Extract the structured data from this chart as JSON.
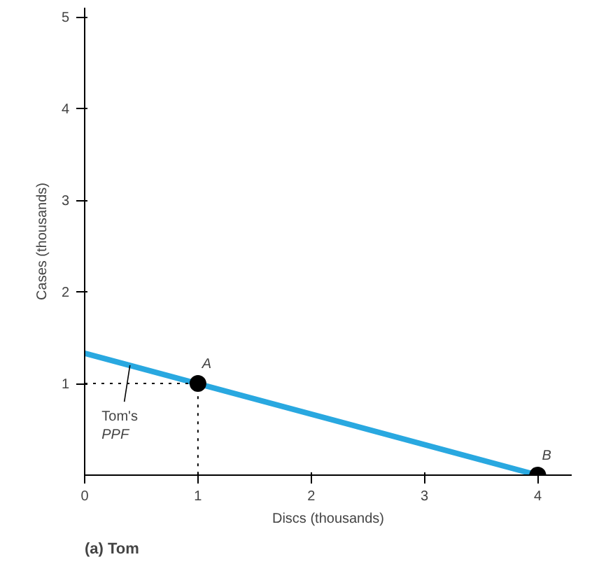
{
  "chart_data": {
    "type": "line",
    "title": "(a) Tom",
    "xlabel": "Discs (thousands)",
    "ylabel": "Cases (thousands)",
    "xlim": [
      0,
      4.3
    ],
    "ylim": [
      0,
      5.1
    ],
    "xticks": [
      0,
      1,
      2,
      3,
      4
    ],
    "yticks": [
      1,
      2,
      3,
      4,
      5
    ],
    "grid": false,
    "series": [
      {
        "color": "#29a8e0",
        "x": [
          0,
          4
        ],
        "values": [
          1.33,
          0
        ],
        "line_style": "solid",
        "marker": "none"
      },
      {
        "color": "#000000",
        "x": [
          0,
          1,
          1
        ],
        "values": [
          1,
          1,
          0
        ],
        "line_style": "dotted",
        "marker": "none"
      },
      {
        "type": "scatter",
        "color": "#000000",
        "x": [
          1,
          4
        ],
        "values": [
          1,
          0
        ],
        "marker": "circle"
      }
    ],
    "annotations": [
      {
        "text": "A",
        "x": 1,
        "y": 1
      },
      {
        "text": "B",
        "x": 4,
        "y": 0
      },
      {
        "text": "Tom's PPF",
        "x": 0.4,
        "y": 1.2
      }
    ]
  }
}
